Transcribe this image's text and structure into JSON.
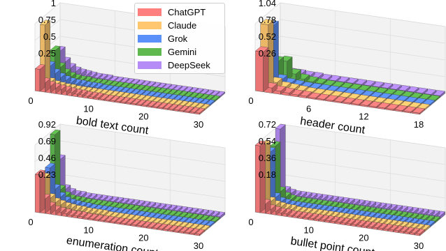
{
  "legend": [
    {
      "name": "ChatGPT",
      "color": "#ff7f7f"
    },
    {
      "name": "Claude",
      "color": "#ffc870"
    },
    {
      "name": "Grok",
      "color": "#5b8ff9"
    },
    {
      "name": "Gemini",
      "color": "#5fb94f"
    },
    {
      "name": "DeepSeek",
      "color": "#b58cf5"
    }
  ],
  "chart_data": [
    {
      "type": "bar3d",
      "xlabel": "bold text count",
      "xticks": [
        "0",
        "10",
        "20",
        "30"
      ],
      "xtick_values": [
        0,
        10,
        20,
        30
      ],
      "xlim": [
        0,
        30
      ],
      "zticks": [
        "0.25",
        "0.5",
        "0.75",
        "1"
      ],
      "ztick_values": [
        0.25,
        0.5,
        0.75,
        1.0
      ],
      "zlim": [
        0,
        1.0
      ],
      "grid": true,
      "series": [
        {
          "name": "ChatGPT",
          "values": [
            0.33,
            0.14,
            0.1,
            0.08,
            0.07,
            0.06,
            0.05,
            0.04,
            0.04,
            0.03,
            0.03,
            0.03,
            0.02,
            0.02,
            0.02,
            0.02,
            0.02,
            0.02,
            0.02,
            0.02,
            0.02,
            0.02,
            0.02,
            0.02,
            0.02,
            0.02,
            0.02,
            0.02,
            0.02,
            0.02,
            0.02
          ]
        },
        {
          "name": "Claude",
          "values": [
            0.93,
            0.08,
            0.05,
            0.04,
            0.03,
            0.03,
            0.02,
            0.02,
            0.02,
            0.02,
            0.02,
            0.02,
            0.02,
            0.02,
            0.02,
            0.02,
            0.02,
            0.02,
            0.02,
            0.02,
            0.02,
            0.02,
            0.02,
            0.02,
            0.02,
            0.02,
            0.02,
            0.02,
            0.02,
            0.02,
            0.02
          ]
        },
        {
          "name": "Grok",
          "values": [
            0.25,
            0.15,
            0.1,
            0.07,
            0.05,
            0.04,
            0.04,
            0.03,
            0.03,
            0.03,
            0.02,
            0.02,
            0.02,
            0.02,
            0.02,
            0.02,
            0.02,
            0.02,
            0.02,
            0.02,
            0.02,
            0.02,
            0.02,
            0.02,
            0.02,
            0.02,
            0.02,
            0.02,
            0.02,
            0.02,
            0.02
          ]
        },
        {
          "name": "Gemini",
          "values": [
            0.42,
            0.18,
            0.1,
            0.06,
            0.04,
            0.03,
            0.03,
            0.02,
            0.02,
            0.02,
            0.02,
            0.02,
            0.02,
            0.02,
            0.02,
            0.02,
            0.02,
            0.02,
            0.02,
            0.02,
            0.02,
            0.02,
            0.02,
            0.02,
            0.02,
            0.02,
            0.02,
            0.02,
            0.02,
            0.02,
            0.02
          ]
        },
        {
          "name": "DeepSeek",
          "values": [
            0.35,
            0.2,
            0.12,
            0.08,
            0.06,
            0.05,
            0.04,
            0.03,
            0.03,
            0.03,
            0.02,
            0.02,
            0.02,
            0.02,
            0.02,
            0.02,
            0.02,
            0.02,
            0.02,
            0.02,
            0.02,
            0.02,
            0.02,
            0.02,
            0.02,
            0.02,
            0.02,
            0.02,
            0.02,
            0.02,
            0.02
          ]
        }
      ]
    },
    {
      "type": "bar3d",
      "xlabel": "header count",
      "xticks": [
        "0",
        "6",
        "12",
        "18"
      ],
      "xtick_values": [
        0,
        6,
        12,
        18
      ],
      "xlim": [
        0,
        18
      ],
      "zticks": [
        "0.26",
        "0.52",
        "0.78",
        "1.04"
      ],
      "ztick_values": [
        0.26,
        0.52,
        0.78,
        1.04
      ],
      "zlim": [
        0,
        1.04
      ],
      "grid": true,
      "series": [
        {
          "name": "ChatGPT",
          "values": [
            0.62,
            0.08,
            0.05,
            0.04,
            0.03,
            0.03,
            0.02,
            0.02,
            0.02,
            0.02,
            0.02,
            0.02,
            0.02,
            0.02,
            0.02,
            0.02,
            0.02,
            0.02,
            0.02
          ]
        },
        {
          "name": "Claude",
          "values": [
            0.98,
            0.1,
            0.05,
            0.04,
            0.03,
            0.02,
            0.02,
            0.02,
            0.02,
            0.02,
            0.02,
            0.02,
            0.02,
            0.02,
            0.02,
            0.02,
            0.02,
            0.02,
            0.02
          ]
        },
        {
          "name": "Grok",
          "values": [
            0.9,
            0.08,
            0.04,
            0.03,
            0.02,
            0.02,
            0.02,
            0.02,
            0.02,
            0.02,
            0.02,
            0.02,
            0.02,
            0.02,
            0.02,
            0.02,
            0.02,
            0.02,
            0.02
          ]
        },
        {
          "name": "Gemini",
          "values": [
            0.28,
            0.3,
            0.12,
            0.06,
            0.04,
            0.03,
            0.02,
            0.02,
            0.02,
            0.02,
            0.02,
            0.02,
            0.02,
            0.02,
            0.02,
            0.02,
            0.02,
            0.02,
            0.02
          ]
        },
        {
          "name": "DeepSeek",
          "values": [
            0.06,
            0.05,
            0.05,
            0.04,
            0.04,
            0.03,
            0.03,
            0.03,
            0.03,
            0.03,
            0.03,
            0.03,
            0.03,
            0.03,
            0.03,
            0.03,
            0.03,
            0.03,
            0.03
          ]
        }
      ]
    },
    {
      "type": "bar3d",
      "xlabel": "enumeration count",
      "xticks": [
        "0",
        "10",
        "20",
        "30"
      ],
      "xtick_values": [
        0,
        10,
        20,
        30
      ],
      "xlim": [
        0,
        30
      ],
      "zticks": [
        "0.23",
        "0.46",
        "0.69",
        "0.92"
      ],
      "ztick_values": [
        0.23,
        0.46,
        0.69,
        0.92
      ],
      "zlim": [
        0,
        0.92
      ],
      "grid": true,
      "series": [
        {
          "name": "ChatGPT",
          "values": [
            0.52,
            0.2,
            0.1,
            0.06,
            0.05,
            0.04,
            0.03,
            0.03,
            0.03,
            0.02,
            0.02,
            0.02,
            0.02,
            0.02,
            0.02,
            0.02,
            0.02,
            0.02,
            0.02,
            0.02,
            0.02,
            0.02,
            0.02,
            0.02,
            0.02,
            0.02,
            0.02,
            0.02,
            0.02,
            0.02,
            0.02
          ]
        },
        {
          "name": "Claude",
          "values": [
            0.42,
            0.15,
            0.1,
            0.08,
            0.06,
            0.05,
            0.04,
            0.04,
            0.03,
            0.03,
            0.03,
            0.03,
            0.02,
            0.02,
            0.02,
            0.02,
            0.02,
            0.02,
            0.02,
            0.02,
            0.02,
            0.02,
            0.02,
            0.02,
            0.02,
            0.02,
            0.02,
            0.02,
            0.02,
            0.02,
            0.02
          ]
        },
        {
          "name": "Grok",
          "values": [
            0.5,
            0.22,
            0.12,
            0.07,
            0.05,
            0.04,
            0.03,
            0.03,
            0.02,
            0.02,
            0.02,
            0.02,
            0.02,
            0.02,
            0.02,
            0.02,
            0.02,
            0.02,
            0.02,
            0.02,
            0.02,
            0.02,
            0.02,
            0.02,
            0.02,
            0.02,
            0.02,
            0.02,
            0.02,
            0.02,
            0.02
          ]
        },
        {
          "name": "Gemini",
          "values": [
            0.9,
            0.15,
            0.07,
            0.04,
            0.03,
            0.03,
            0.02,
            0.02,
            0.02,
            0.02,
            0.02,
            0.02,
            0.02,
            0.02,
            0.02,
            0.02,
            0.02,
            0.02,
            0.02,
            0.02,
            0.02,
            0.02,
            0.02,
            0.02,
            0.02,
            0.02,
            0.02,
            0.02,
            0.02,
            0.02,
            0.02
          ]
        },
        {
          "name": "DeepSeek",
          "values": [
            0.5,
            0.1,
            0.06,
            0.04,
            0.04,
            0.03,
            0.03,
            0.03,
            0.03,
            0.03,
            0.03,
            0.03,
            0.03,
            0.03,
            0.03,
            0.03,
            0.03,
            0.03,
            0.03,
            0.03,
            0.03,
            0.03,
            0.03,
            0.03,
            0.03,
            0.03,
            0.03,
            0.03,
            0.03,
            0.03,
            0.03
          ]
        }
      ]
    },
    {
      "type": "bar3d",
      "xlabel": "bullet point count",
      "xticks": [
        "0",
        "10",
        "20",
        "30"
      ],
      "xtick_values": [
        0,
        10,
        20,
        30
      ],
      "xlim": [
        0,
        30
      ],
      "zticks": [
        "0.18",
        "0.36",
        "0.54",
        "0.72"
      ],
      "ztick_values": [
        0.18,
        0.36,
        0.54,
        0.72
      ],
      "zlim": [
        0,
        0.72
      ],
      "grid": true,
      "series": [
        {
          "name": "ChatGPT",
          "values": [
            0.72,
            0.1,
            0.05,
            0.04,
            0.03,
            0.03,
            0.02,
            0.02,
            0.02,
            0.02,
            0.02,
            0.02,
            0.02,
            0.02,
            0.02,
            0.02,
            0.02,
            0.02,
            0.02,
            0.02,
            0.02,
            0.02,
            0.02,
            0.02,
            0.02,
            0.02,
            0.02,
            0.02,
            0.02,
            0.02,
            0.02
          ]
        },
        {
          "name": "Claude",
          "values": [
            0.68,
            0.08,
            0.05,
            0.04,
            0.03,
            0.03,
            0.02,
            0.02,
            0.02,
            0.02,
            0.02,
            0.02,
            0.02,
            0.02,
            0.02,
            0.02,
            0.02,
            0.02,
            0.02,
            0.02,
            0.02,
            0.02,
            0.02,
            0.02,
            0.02,
            0.02,
            0.02,
            0.02,
            0.02,
            0.02,
            0.02
          ]
        },
        {
          "name": "Grok",
          "values": [
            0.56,
            0.08,
            0.04,
            0.03,
            0.02,
            0.02,
            0.02,
            0.02,
            0.02,
            0.02,
            0.02,
            0.02,
            0.02,
            0.02,
            0.02,
            0.02,
            0.02,
            0.02,
            0.02,
            0.02,
            0.02,
            0.02,
            0.02,
            0.02,
            0.02,
            0.02,
            0.02,
            0.02,
            0.02,
            0.02,
            0.02
          ]
        },
        {
          "name": "Gemini",
          "values": [
            0.58,
            0.1,
            0.05,
            0.03,
            0.02,
            0.02,
            0.02,
            0.02,
            0.02,
            0.02,
            0.02,
            0.02,
            0.02,
            0.02,
            0.02,
            0.02,
            0.02,
            0.02,
            0.02,
            0.02,
            0.02,
            0.02,
            0.02,
            0.02,
            0.02,
            0.02,
            0.02,
            0.02,
            0.02,
            0.02,
            0.02
          ]
        },
        {
          "name": "DeepSeek",
          "values": [
            0.72,
            0.06,
            0.04,
            0.03,
            0.03,
            0.03,
            0.03,
            0.03,
            0.03,
            0.03,
            0.03,
            0.03,
            0.03,
            0.03,
            0.03,
            0.03,
            0.03,
            0.03,
            0.03,
            0.03,
            0.03,
            0.03,
            0.03,
            0.03,
            0.03,
            0.03,
            0.03,
            0.03,
            0.03,
            0.03,
            0.03
          ]
        }
      ]
    }
  ]
}
